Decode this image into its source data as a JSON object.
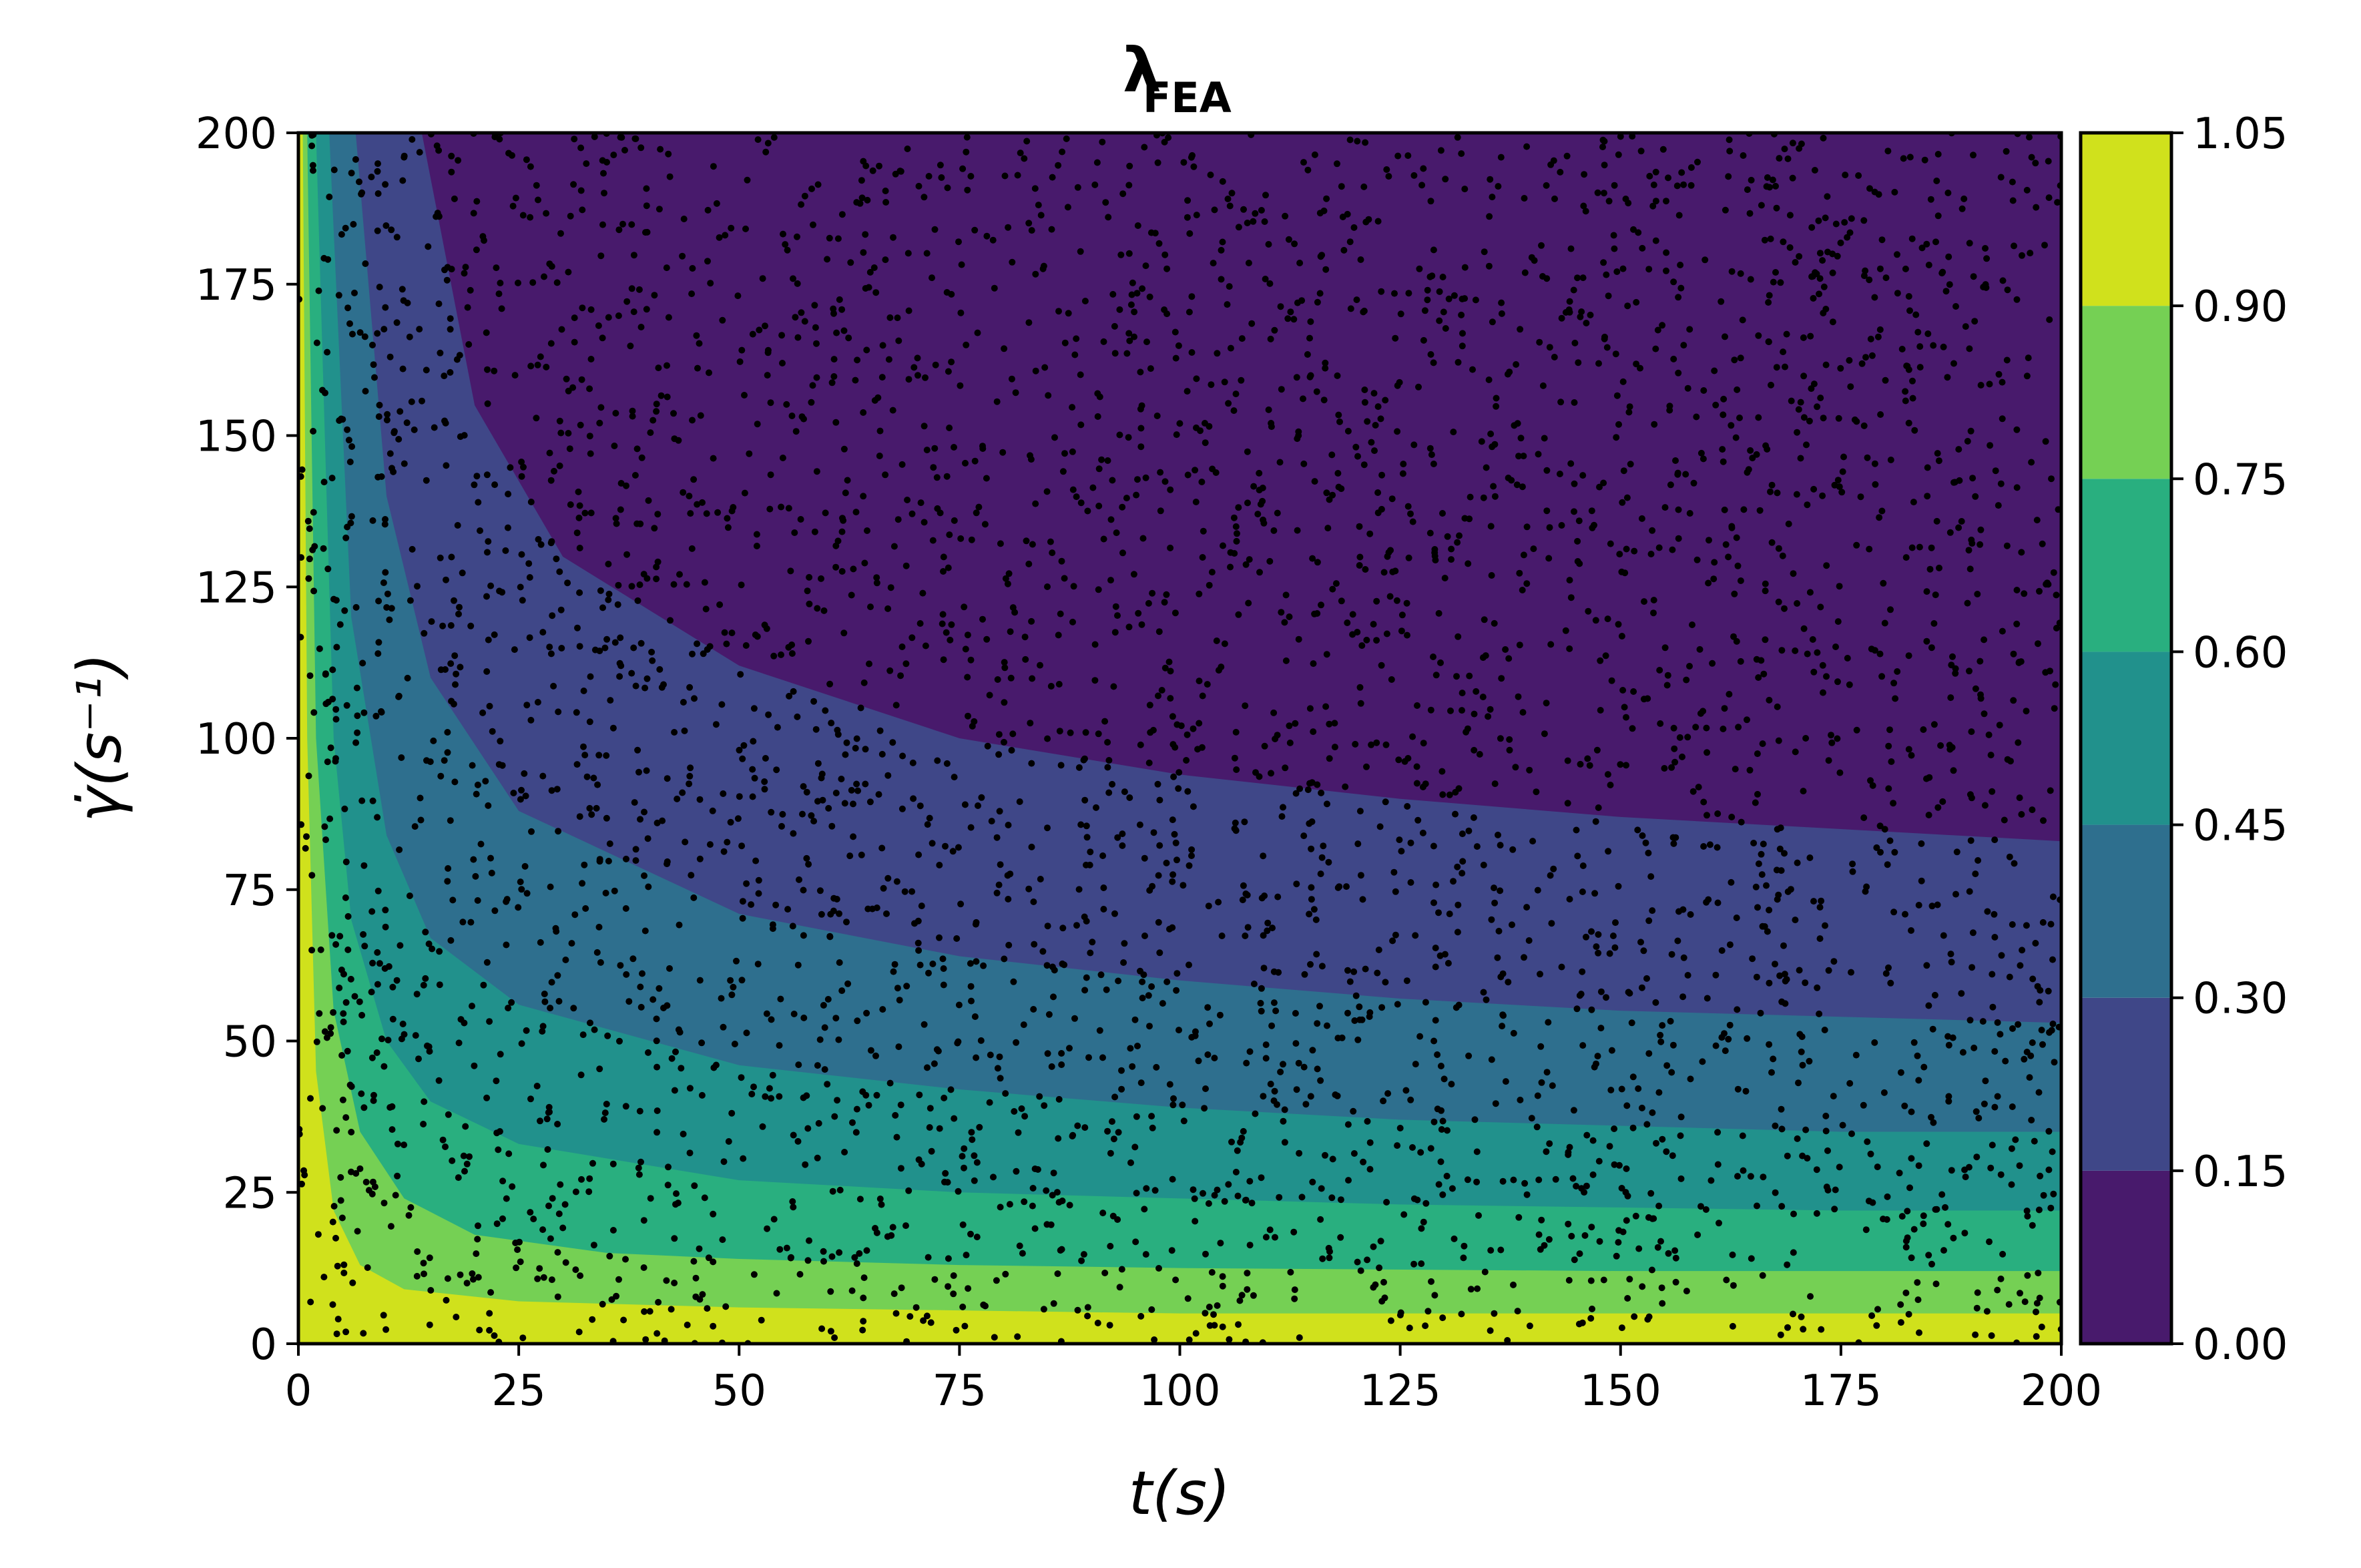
{
  "chart_data": {
    "type": "heatmap",
    "subtype": "filled-contour-with-scatter",
    "title": "λ",
    "title_subscript": "FEA",
    "xlabel": "t(s)",
    "ylabel": "γ̇(s⁻¹)",
    "xlim": [
      0,
      200
    ],
    "ylim": [
      0,
      200
    ],
    "x_ticks": [
      "0",
      "25",
      "50",
      "75",
      "100",
      "125",
      "150",
      "175",
      "200"
    ],
    "y_ticks": [
      "0",
      "25",
      "50",
      "75",
      "100",
      "125",
      "150",
      "175",
      "200"
    ],
    "colorbar": {
      "levels": [
        0.0,
        0.15,
        0.3,
        0.45,
        0.6,
        0.75,
        0.9,
        1.05
      ],
      "tick_labels": [
        "0.00",
        "0.15",
        "0.30",
        "0.45",
        "0.60",
        "0.75",
        "0.90",
        "1.05"
      ],
      "colors": [
        "#481a6c",
        "#3f4788",
        "#2e6f8e",
        "#21918c",
        "#29af7f",
        "#75d054",
        "#d0e11c"
      ]
    },
    "contour_boundaries": [
      {
        "level": 0.15,
        "points": [
          [
            14.0,
            200
          ],
          [
            20,
            155
          ],
          [
            30,
            130
          ],
          [
            50,
            112
          ],
          [
            75,
            100
          ],
          [
            100,
            94
          ],
          [
            125,
            90
          ],
          [
            150,
            87
          ],
          [
            175,
            85
          ],
          [
            200,
            83
          ]
        ]
      },
      {
        "level": 0.3,
        "points": [
          [
            6.5,
            200
          ],
          [
            10,
            140
          ],
          [
            15,
            110
          ],
          [
            25,
            88
          ],
          [
            50,
            71
          ],
          [
            75,
            64
          ],
          [
            100,
            60
          ],
          [
            125,
            57
          ],
          [
            150,
            55
          ],
          [
            175,
            54
          ],
          [
            200,
            53
          ]
        ]
      },
      {
        "level": 0.45,
        "points": [
          [
            3.5,
            200
          ],
          [
            6,
            120
          ],
          [
            10,
            84
          ],
          [
            15,
            67
          ],
          [
            25,
            56
          ],
          [
            50,
            46
          ],
          [
            75,
            42
          ],
          [
            100,
            39
          ],
          [
            125,
            37
          ],
          [
            150,
            36
          ],
          [
            175,
            35
          ],
          [
            200,
            35
          ]
        ]
      },
      {
        "level": 0.6,
        "points": [
          [
            2.0,
            200
          ],
          [
            4,
            100
          ],
          [
            6,
            70
          ],
          [
            10,
            50
          ],
          [
            15,
            40
          ],
          [
            25,
            33
          ],
          [
            50,
            27
          ],
          [
            75,
            25
          ],
          [
            100,
            24
          ],
          [
            125,
            23
          ],
          [
            150,
            22.5
          ],
          [
            175,
            22
          ],
          [
            200,
            22
          ]
        ]
      },
      {
        "level": 0.75,
        "points": [
          [
            1.0,
            200
          ],
          [
            2,
            100
          ],
          [
            4,
            55
          ],
          [
            7,
            35
          ],
          [
            12,
            24
          ],
          [
            20,
            18
          ],
          [
            35,
            15
          ],
          [
            50,
            14
          ],
          [
            75,
            13
          ],
          [
            100,
            12.5
          ],
          [
            150,
            12
          ],
          [
            200,
            12
          ]
        ]
      },
      {
        "level": 0.9,
        "points": [
          [
            0.5,
            200
          ],
          [
            1,
            100
          ],
          [
            2,
            45
          ],
          [
            4,
            22
          ],
          [
            7,
            13
          ],
          [
            12,
            9
          ],
          [
            25,
            7
          ],
          [
            50,
            6
          ],
          [
            75,
            5.5
          ],
          [
            100,
            5
          ],
          [
            150,
            5
          ],
          [
            200,
            5
          ]
        ]
      }
    ],
    "scatter": {
      "count": 4000,
      "color": "#000000",
      "distribution": "uniform over [0,200]×[0,200]",
      "seed": 7
    }
  }
}
